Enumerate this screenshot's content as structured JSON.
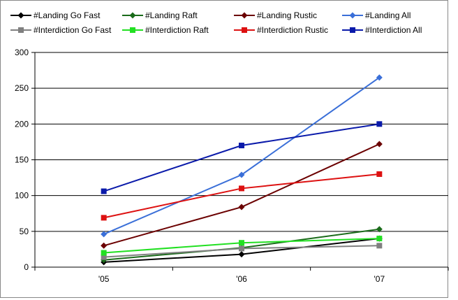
{
  "chart_data": {
    "type": "line",
    "title": "",
    "xlabel": "",
    "ylabel": "",
    "categories": [
      "'05",
      "'06",
      "'07"
    ],
    "ylim": [
      0,
      300
    ],
    "yticks": [
      0,
      50,
      100,
      150,
      200,
      250,
      300
    ],
    "grid": "horizontal",
    "legend_position": "top",
    "series": [
      {
        "name": "#Landing Go Fast",
        "values": [
          7,
          18,
          40
        ],
        "color": "#000000",
        "marker": "diamond"
      },
      {
        "name": "#Landing Raft",
        "values": [
          10,
          27,
          53
        ],
        "color": "#1a6b1a",
        "marker": "diamond"
      },
      {
        "name": "#Landing Rustic",
        "values": [
          30,
          84,
          172
        ],
        "color": "#6b0000",
        "marker": "diamond"
      },
      {
        "name": "#Landing All",
        "values": [
          46,
          129,
          265
        ],
        "color": "#3a6fd8",
        "marker": "diamond"
      },
      {
        "name": "#Interdiction Go Fast",
        "values": [
          14,
          26,
          30
        ],
        "color": "#808080",
        "marker": "square"
      },
      {
        "name": "#Interdiction Raft",
        "values": [
          20,
          34,
          40
        ],
        "color": "#22e022",
        "marker": "square"
      },
      {
        "name": "#Interdiction Rustic",
        "values": [
          69,
          110,
          130
        ],
        "color": "#dd1111",
        "marker": "square"
      },
      {
        "name": "#Interdiction All",
        "values": [
          106,
          170,
          200
        ],
        "color": "#0a1aaa",
        "marker": "square"
      }
    ]
  }
}
